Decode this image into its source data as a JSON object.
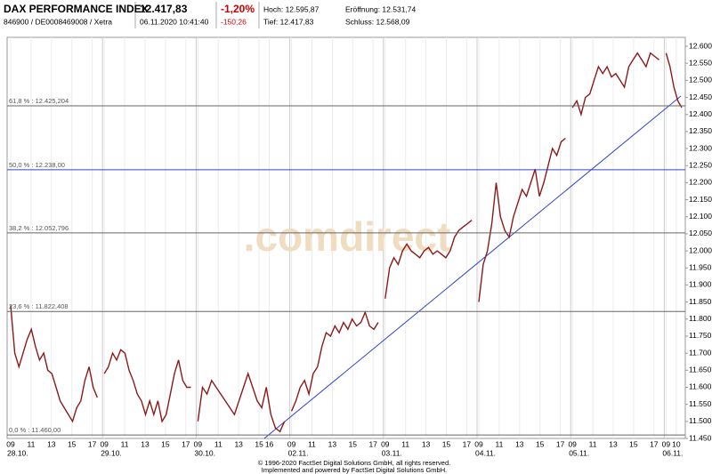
{
  "header": {
    "name": "DAX PERFORMANCE INDEX",
    "ids": "846900 / DE0008469008 / Xetra",
    "price": "12.417,83",
    "datetime": "06.11.2020 10:41:40",
    "change_pct": "-1,20%",
    "change_abs": "-150,26",
    "high": "Hoch: 12.595,87",
    "low": "Tief: 12.417,83",
    "open": "Eröffnung: 12.531,74",
    "close": "Schluss: 12.568,09"
  },
  "chart_data": {
    "type": "line",
    "color": "#8b1a1a",
    "watermark": ".comdirect",
    "ylim": [
      11450,
      12600
    ],
    "yticks": [
      {
        "value": 11450,
        "label": "11.450"
      },
      {
        "value": 11500,
        "label": "11.500"
      },
      {
        "value": 11550,
        "label": "11.550"
      },
      {
        "value": 11600,
        "label": "11.600"
      },
      {
        "value": 11650,
        "label": "11.650"
      },
      {
        "value": 11700,
        "label": "11.700"
      },
      {
        "value": 11750,
        "label": "11.750"
      },
      {
        "value": 11800,
        "label": "11.800"
      },
      {
        "value": 11850,
        "label": "11.850"
      },
      {
        "value": 11900,
        "label": "11.900"
      },
      {
        "value": 11950,
        "label": "11.950"
      },
      {
        "value": 12000,
        "label": "12.000"
      },
      {
        "value": 12050,
        "label": "12.050"
      },
      {
        "value": 12100,
        "label": "12.100"
      },
      {
        "value": 12150,
        "label": "12.150"
      },
      {
        "value": 12200,
        "label": "12.200"
      },
      {
        "value": 12250,
        "label": "12.250"
      },
      {
        "value": 12300,
        "label": "12.300"
      },
      {
        "value": 12350,
        "label": "12.350"
      },
      {
        "value": 12400,
        "label": "12.400"
      },
      {
        "value": 12450,
        "label": "12.450"
      },
      {
        "value": 12500,
        "label": "12.500"
      },
      {
        "value": 12550,
        "label": "12.550"
      },
      {
        "value": 12600,
        "label": "12.600"
      }
    ],
    "days": [
      {
        "date": "28.10.",
        "hours": [
          "09",
          "11",
          "13",
          "15",
          "17"
        ],
        "values": [
          11840,
          11700,
          11660,
          11700,
          11740,
          11770,
          11720,
          11680,
          11700,
          11650,
          11640,
          11600,
          11560,
          11540,
          11520,
          11500,
          11540,
          11560,
          11620,
          11660,
          11600,
          11570
        ]
      },
      {
        "date": "29.10.",
        "hours": [
          "09",
          "11",
          "13",
          "15",
          "17"
        ],
        "values": [
          11640,
          11660,
          11700,
          11680,
          11710,
          11700,
          11650,
          11620,
          11580,
          11560,
          11520,
          11560,
          11520,
          11560,
          11500,
          11520,
          11580,
          11640,
          11680,
          11620,
          11600,
          11600
        ]
      },
      {
        "date": "30.10.",
        "hours": [
          "09",
          "11",
          "13",
          "15",
          "16"
        ],
        "values": [
          11500,
          11600,
          11580,
          11620,
          11600,
          11580,
          11560,
          11540,
          11520,
          11560,
          11600,
          11640,
          11600,
          11560,
          11540,
          11600,
          11520,
          11480,
          11470,
          11500
        ]
      },
      {
        "date": "02.11.",
        "hours": [
          "09",
          "11",
          "13",
          "15",
          "17"
        ],
        "values": [
          11530,
          11560,
          11600,
          11620,
          11580,
          11640,
          11660,
          11720,
          11760,
          11750,
          11780,
          11760,
          11790,
          11770,
          11800,
          11780,
          11790,
          11820,
          11780,
          11770,
          11790
        ]
      },
      {
        "date": "03.11.",
        "hours": [
          "09",
          "11",
          "13",
          "15",
          "17"
        ],
        "values": [
          11860,
          11950,
          11980,
          11960,
          12000,
          12020,
          12000,
          11990,
          11980,
          12000,
          12010,
          11990,
          12000,
          11990,
          11980,
          12000,
          12040,
          12060,
          12070,
          12080,
          12090
        ]
      },
      {
        "date": "04.11.",
        "hours": [
          "09",
          "11",
          "13",
          "15",
          "17"
        ],
        "values": [
          11850,
          11960,
          12000,
          12080,
          12200,
          12100,
          12060,
          12040,
          12100,
          12140,
          12180,
          12160,
          12200,
          12240,
          12160,
          12200,
          12250,
          12300,
          12280,
          12320,
          12330
        ]
      },
      {
        "date": "05.11.",
        "hours": [
          "09",
          "11",
          "13",
          "15",
          "17"
        ],
        "values": [
          12420,
          12440,
          12400,
          12450,
          12460,
          12500,
          12540,
          12520,
          12540,
          12510,
          12520,
          12500,
          12480,
          12540,
          12560,
          12580,
          12560,
          12540,
          12580,
          12570,
          12560
        ]
      },
      {
        "date": "06.11.",
        "hours": [
          "09",
          "10"
        ],
        "values": [
          12580,
          12540,
          12480,
          12440,
          12420
        ]
      }
    ],
    "levels": [
      {
        "value": 12425.204,
        "label": "61,8 % : 12.425,204",
        "color": "#666"
      },
      {
        "value": 12238.0,
        "label": "50,0 % : 12.238,00",
        "color": "#3344cc"
      },
      {
        "value": 12052.796,
        "label": "38,2 % : 12.052,796",
        "color": "#666"
      },
      {
        "value": 11822.408,
        "label": "23,6 % : 11.822,408",
        "color": "#666"
      },
      {
        "value": 11460.0,
        "label": "0,0 % : 11.460,00",
        "color": "#666"
      }
    ],
    "footer": [
      "© 1996-2020 FactSet Digital Solutions GmbH, all rights reserved.",
      "Implemented and powered by FactSet Digital Solutions GmbH."
    ]
  }
}
